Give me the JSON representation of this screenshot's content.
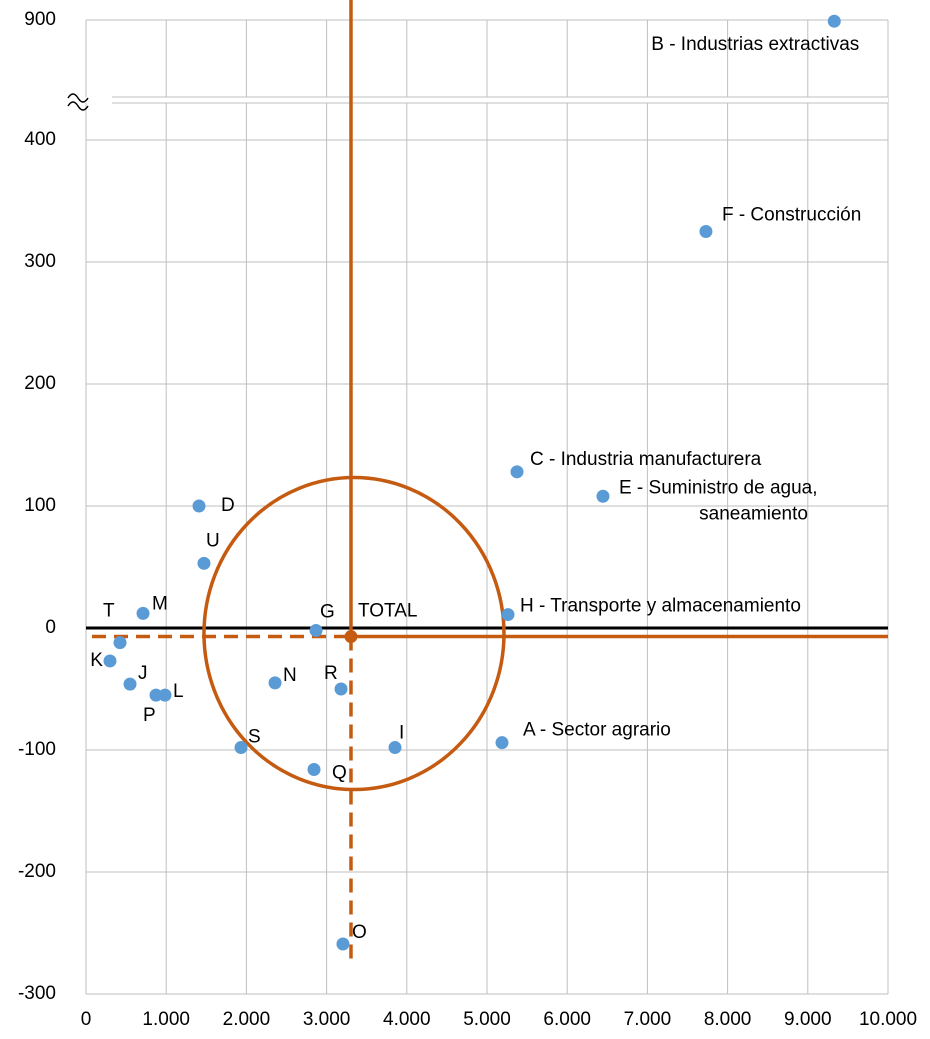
{
  "chart_data": {
    "type": "scatter",
    "xlim": [
      0,
      10000
    ],
    "xticks": [
      0,
      {
        "value": 1000,
        "label": "1.000"
      },
      {
        "value": 2000,
        "label": "2.000"
      },
      {
        "value": 3000,
        "label": "3.000"
      },
      {
        "value": 4000,
        "label": "4.000"
      },
      {
        "value": 5000,
        "label": "5.000"
      },
      {
        "value": 6000,
        "label": "6.000"
      },
      {
        "value": 7000,
        "label": "7.000"
      },
      {
        "value": 8000,
        "label": "8.000"
      },
      {
        "value": 9000,
        "label": "9.000"
      },
      {
        "value": 10000,
        "label": "10.000"
      }
    ],
    "ylim": [
      -300,
      900
    ],
    "yticks": [
      -300,
      -200,
      -100,
      0,
      100,
      200,
      300,
      400,
      900
    ],
    "axis_break": [
      400,
      900
    ],
    "grid": true,
    "series": [
      {
        "color": "#5b9bd5",
        "labels": [
          "B - Industrias extractivas",
          "F - Construcción",
          "C - Industria manufacturera",
          [
            "E - Suministro de agua,",
            "saneamiento"
          ],
          "D",
          "U",
          "M",
          "H - Transporte y almacenamiento",
          "G",
          "T",
          "K",
          "J",
          "P",
          "L",
          "N",
          "R",
          "S",
          "I",
          "A - Sector agrario",
          "Q",
          "O"
        ],
        "x": [
          9330,
          7730,
          5374,
          6446,
          1409,
          1471,
          711,
          5262,
          2868,
          424,
          299,
          549,
          873,
          985,
          2357,
          3180,
          1933,
          3853,
          5187,
          2843,
          3204
        ],
        "values": [
          895,
          325,
          128,
          108,
          100,
          53,
          12,
          11,
          -2,
          -12,
          -27,
          -46,
          -55,
          -55,
          -45,
          -50,
          -98,
          -98,
          -94,
          -116,
          -259
        ]
      },
      {
        "color": "#c55a11",
        "labels": [
          "TOTAL"
        ],
        "x": [
          3304
        ],
        "values": [
          -7
        ]
      }
    ]
  }
}
